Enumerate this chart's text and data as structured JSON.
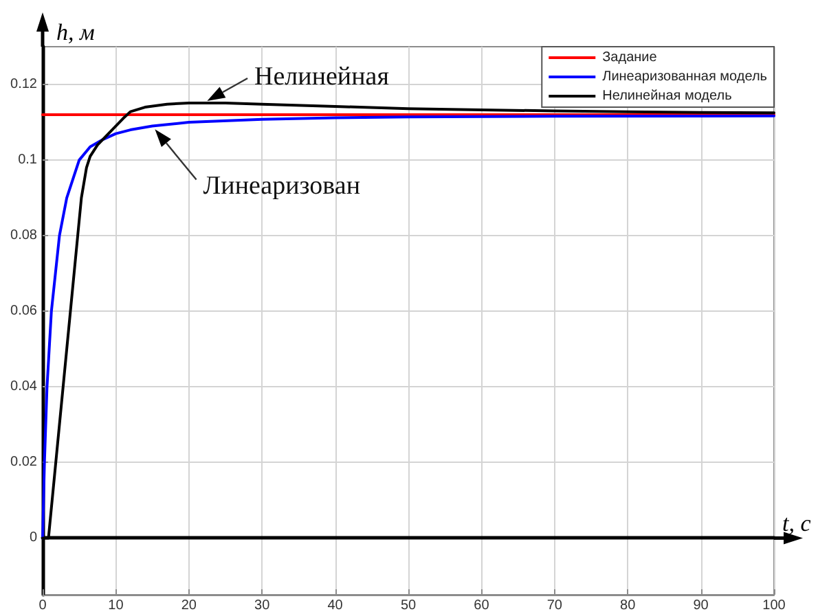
{
  "chart_data": {
    "type": "line",
    "xlabel": "t, с",
    "ylabel": "h, м",
    "xlim": [
      0,
      100
    ],
    "xticks": [
      0,
      10,
      20,
      30,
      40,
      50,
      60,
      70,
      80,
      90,
      100
    ],
    "ylim": [
      -0.015,
      0.13
    ],
    "yticks": [
      0,
      0.02,
      0.04,
      0.06,
      0.08,
      0.1,
      0.12
    ],
    "grid": true,
    "legend": "top right",
    "series": [
      {
        "name": "Задание",
        "color": "#ff0000",
        "x": [
          0,
          100
        ],
        "values": [
          0.112,
          0.112
        ]
      },
      {
        "name": "Линеаризованная модель",
        "color": "#0000ff",
        "x": [
          0,
          0.25,
          0.6,
          1.2,
          2.3,
          3.3,
          5,
          6.5,
          8.3,
          10,
          12,
          15,
          20,
          30,
          40,
          50,
          70,
          100
        ],
        "values": [
          0,
          0.02,
          0.04,
          0.06,
          0.08,
          0.09,
          0.1,
          0.1035,
          0.1055,
          0.107,
          0.108,
          0.109,
          0.11,
          0.1108,
          0.1112,
          0.1114,
          0.1116,
          0.1117
        ]
      },
      {
        "name": "Нелинейная модель",
        "color": "#000000",
        "x": [
          0,
          0.8,
          4.8,
          5.3,
          6,
          6.5,
          7.5,
          8.5,
          10,
          11,
          12,
          14,
          17,
          20,
          25,
          30,
          40,
          50,
          60,
          70,
          80,
          90,
          100
        ],
        "values": [
          0,
          0,
          0.08,
          0.09,
          0.098,
          0.101,
          0.104,
          0.106,
          0.109,
          0.111,
          0.1128,
          0.114,
          0.1148,
          0.1151,
          0.1151,
          0.1148,
          0.1142,
          0.1136,
          0.1133,
          0.113,
          0.1128,
          0.1126,
          0.1125
        ]
      }
    ],
    "annotations": [
      {
        "text": "Нелинейная",
        "x": 22,
        "y": 0.1151
      },
      {
        "text": "Линеаризован",
        "x": 15,
        "y": 0.109
      }
    ]
  }
}
